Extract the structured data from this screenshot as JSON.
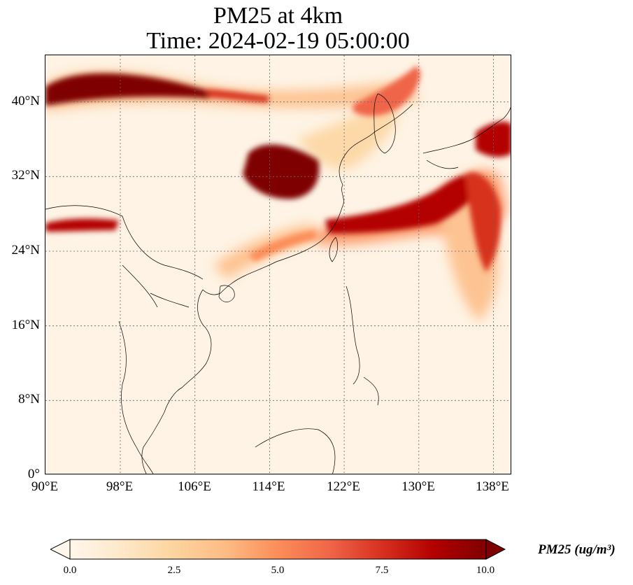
{
  "title": {
    "line1": "PM25 at 4km",
    "line2": "Time: 2024-02-19 05:00:00"
  },
  "map": {
    "projection": "PlateCarree",
    "lon_range": [
      90,
      140
    ],
    "lat_range": [
      0,
      45
    ],
    "gridlines": "dotted",
    "lat_ticks": [
      {
        "value": 0,
        "label": "0°"
      },
      {
        "value": 8,
        "label": "8°N"
      },
      {
        "value": 16,
        "label": "16°N"
      },
      {
        "value": 24,
        "label": "24°N"
      },
      {
        "value": 32,
        "label": "32°N"
      },
      {
        "value": 40,
        "label": "40°N"
      }
    ],
    "lon_ticks": [
      {
        "value": 90,
        "label": "90°E"
      },
      {
        "value": 98,
        "label": "98°E"
      },
      {
        "value": 106,
        "label": "106°E"
      },
      {
        "value": 114,
        "label": "114°E"
      },
      {
        "value": 122,
        "label": "122°E"
      },
      {
        "value": 130,
        "label": "130°E"
      },
      {
        "value": 138,
        "label": "138°E"
      }
    ]
  },
  "colorbar": {
    "label": "PM25 (ug/m³)",
    "vmin": 0.0,
    "vmax": 10.0,
    "extend": "both",
    "colormap": "OrRd",
    "colors": [
      "#fff7ec",
      "#fee8c8",
      "#fdd49e",
      "#fdbb84",
      "#fc8d59",
      "#ef6548",
      "#d7301f",
      "#b30000",
      "#7f0000"
    ],
    "ticks": [
      "0.0",
      "2.5",
      "5.0",
      "7.5",
      "10.0"
    ]
  },
  "plumes": [
    {
      "name": "north-band",
      "intensity": "high"
    },
    {
      "name": "central-china-hotspot",
      "intensity": "high"
    },
    {
      "name": "east-china-sea-band",
      "intensity": "high"
    },
    {
      "name": "japan-hotspot",
      "intensity": "high"
    },
    {
      "name": "tibet-band",
      "intensity": "high"
    },
    {
      "name": "south-china-coast",
      "intensity": "medium"
    }
  ]
}
